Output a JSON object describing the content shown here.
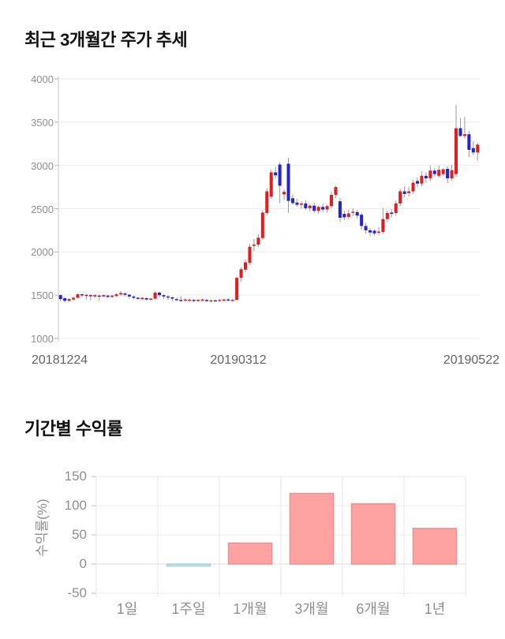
{
  "chart_data": [
    {
      "type": "candlestick",
      "title": "최근 3개월간 주가 추세",
      "x_labels": [
        "20181224",
        "20190312",
        "20190522"
      ],
      "y_ticks": [
        4000,
        3500,
        3000,
        2500,
        2000,
        1500,
        1000
      ],
      "ylim": [
        1000,
        4000
      ],
      "grid": "horizontal",
      "up_color": "#e11d1d",
      "down_color": "#2323cf",
      "wick_color": "#9a9a9a",
      "candles_format": [
        "open",
        "high",
        "low",
        "close"
      ],
      "candles": [
        [
          1500,
          1510,
          1430,
          1455
        ],
        [
          1465,
          1475,
          1415,
          1435
        ],
        [
          1435,
          1465,
          1425,
          1455
        ],
        [
          1450,
          1485,
          1435,
          1470
        ],
        [
          1470,
          1520,
          1460,
          1510
        ],
        [
          1510,
          1525,
          1480,
          1500
        ],
        [
          1500,
          1515,
          1450,
          1505
        ],
        [
          1500,
          1510,
          1440,
          1490
        ],
        [
          1485,
          1510,
          1470,
          1500
        ],
        [
          1495,
          1505,
          1430,
          1485
        ],
        [
          1485,
          1510,
          1475,
          1500
        ],
        [
          1495,
          1505,
          1465,
          1480
        ],
        [
          1480,
          1505,
          1470,
          1495
        ],
        [
          1490,
          1520,
          1480,
          1510
        ],
        [
          1510,
          1550,
          1495,
          1525
        ],
        [
          1520,
          1530,
          1485,
          1505
        ],
        [
          1505,
          1515,
          1465,
          1485
        ],
        [
          1485,
          1495,
          1450,
          1470
        ],
        [
          1470,
          1480,
          1445,
          1460
        ],
        [
          1455,
          1480,
          1445,
          1470
        ],
        [
          1465,
          1475,
          1435,
          1450
        ],
        [
          1455,
          1470,
          1440,
          1460
        ],
        [
          1460,
          1545,
          1450,
          1530
        ],
        [
          1530,
          1540,
          1475,
          1500
        ],
        [
          1500,
          1510,
          1455,
          1485
        ],
        [
          1485,
          1500,
          1445,
          1475
        ],
        [
          1475,
          1485,
          1435,
          1460
        ],
        [
          1455,
          1470,
          1430,
          1445
        ],
        [
          1445,
          1490,
          1425,
          1440
        ],
        [
          1440,
          1460,
          1425,
          1450
        ],
        [
          1442,
          1458,
          1428,
          1448
        ],
        [
          1445,
          1455,
          1420,
          1440
        ],
        [
          1440,
          1455,
          1425,
          1445
        ],
        [
          1445,
          1460,
          1430,
          1450
        ],
        [
          1445,
          1455,
          1420,
          1435
        ],
        [
          1435,
          1450,
          1420,
          1440
        ],
        [
          1440,
          1450,
          1425,
          1435
        ],
        [
          1435,
          1455,
          1425,
          1445
        ],
        [
          1445,
          1460,
          1430,
          1450
        ],
        [
          1450,
          1465,
          1425,
          1440
        ],
        [
          1440,
          1455,
          1428,
          1446
        ],
        [
          1446,
          1715,
          1435,
          1700
        ],
        [
          1700,
          1825,
          1655,
          1800
        ],
        [
          1795,
          1915,
          1765,
          1880
        ],
        [
          1875,
          2095,
          1850,
          2060
        ],
        [
          2070,
          2150,
          2010,
          2085
        ],
        [
          2085,
          2205,
          2055,
          2165
        ],
        [
          2160,
          2480,
          2140,
          2455
        ],
        [
          2450,
          2735,
          2425,
          2700
        ],
        [
          2640,
          2950,
          2615,
          2920
        ],
        [
          2920,
          2985,
          2845,
          2885
        ],
        [
          3010,
          3035,
          2565,
          2765
        ],
        [
          2665,
          2725,
          2600,
          2695
        ],
        [
          3020,
          3090,
          2450,
          2590
        ],
        [
          2620,
          2665,
          2545,
          2565
        ],
        [
          2570,
          2615,
          2520,
          2545
        ],
        [
          2545,
          2585,
          2500,
          2560
        ],
        [
          2560,
          2595,
          2480,
          2505
        ],
        [
          2505,
          2555,
          2470,
          2535
        ],
        [
          2535,
          2565,
          2450,
          2475
        ],
        [
          2475,
          2535,
          2440,
          2520
        ],
        [
          2520,
          2560,
          2460,
          2490
        ],
        [
          2490,
          2545,
          2455,
          2530
        ],
        [
          2530,
          2700,
          2510,
          2660
        ],
        [
          2660,
          2765,
          2620,
          2750
        ],
        [
          2585,
          2625,
          2345,
          2395
        ],
        [
          2440,
          2475,
          2370,
          2400
        ],
        [
          2405,
          2485,
          2380,
          2445
        ],
        [
          2455,
          2505,
          2415,
          2465
        ],
        [
          2460,
          2485,
          2390,
          2420
        ],
        [
          2430,
          2455,
          2255,
          2300
        ],
        [
          2300,
          2335,
          2210,
          2250
        ],
        [
          2250,
          2275,
          2180,
          2225
        ],
        [
          2245,
          2260,
          2190,
          2215
        ],
        [
          2225,
          2290,
          2195,
          2235
        ],
        [
          2230,
          2510,
          2215,
          2380
        ],
        [
          2380,
          2480,
          2350,
          2450
        ],
        [
          2455,
          2495,
          2400,
          2440
        ],
        [
          2450,
          2590,
          2420,
          2560
        ],
        [
          2560,
          2730,
          2530,
          2700
        ],
        [
          2700,
          2760,
          2630,
          2670
        ],
        [
          2680,
          2750,
          2640,
          2700
        ],
        [
          2700,
          2830,
          2670,
          2800
        ],
        [
          2820,
          2860,
          2750,
          2790
        ],
        [
          2790,
          2930,
          2760,
          2880
        ],
        [
          2880,
          2920,
          2800,
          2850
        ],
        [
          2850,
          3000,
          2820,
          2940
        ],
        [
          2940,
          2965,
          2870,
          2900
        ],
        [
          2880,
          3000,
          2860,
          2950
        ],
        [
          2900,
          2965,
          2880,
          2955
        ],
        [
          2960,
          2990,
          2795,
          2850
        ],
        [
          2850,
          3005,
          2820,
          2945
        ],
        [
          2900,
          3700,
          2870,
          3430
        ],
        [
          3430,
          3550,
          3330,
          3340
        ],
        [
          3340,
          3560,
          3310,
          3360
        ],
        [
          3360,
          3400,
          3095,
          3180
        ],
        [
          3200,
          3280,
          3120,
          3150
        ],
        [
          3150,
          3260,
          3055,
          3240
        ]
      ]
    },
    {
      "type": "bar",
      "title": "기간별 수익률",
      "ylabel": "수익률(%)",
      "categories": [
        "1일",
        "1주일",
        "1개월",
        "3개월",
        "6개월",
        "1년"
      ],
      "values": [
        0,
        -2,
        36,
        121,
        103,
        61
      ],
      "y_ticks": [
        150,
        100,
        50,
        0,
        -50
      ],
      "ylim": [
        -50,
        150
      ],
      "grid": "both",
      "positive_color": "#ffa2a2",
      "positive_border": "#ef8f8f",
      "negative_color": "#cde9ef",
      "negative_border": "#9ed3de"
    }
  ]
}
